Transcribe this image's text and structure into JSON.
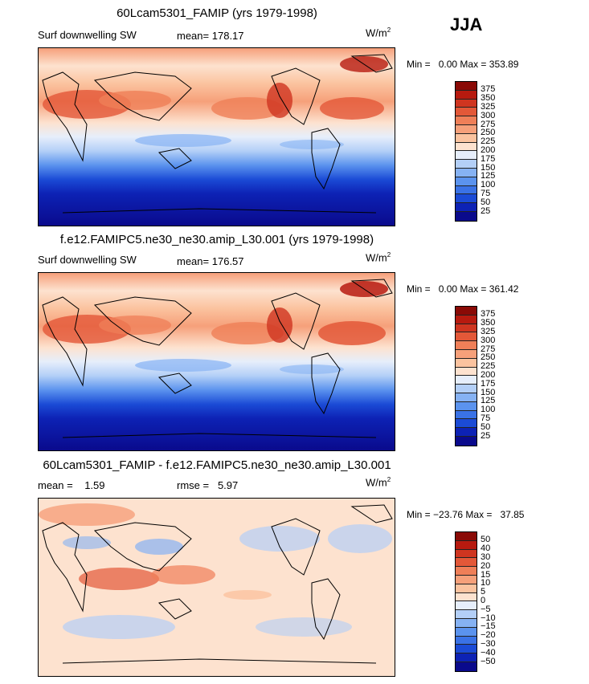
{
  "season": "JJA",
  "units": "W/m",
  "units_sup": "2",
  "colors": {
    "abs_scale": [
      "#0a0a8c",
      "#0d22b5",
      "#1b4bd6",
      "#3a72e6",
      "#5b93ee",
      "#86b2f3",
      "#b3cff7",
      "#e6eefb",
      "#fde2cf",
      "#fbc39f",
      "#f6a07a",
      "#ef7f58",
      "#e35838",
      "#cf3520",
      "#b71a0f",
      "#8a0a06"
    ],
    "diff_scale": [
      "#0a0a8c",
      "#0d22b5",
      "#1b4bd6",
      "#3a72e6",
      "#5b93ee",
      "#86b2f3",
      "#b3cff7",
      "#e6eefb",
      "#fde2cf",
      "#fbc39f",
      "#f6a07a",
      "#ef7f58",
      "#e35838",
      "#cf3520",
      "#b71a0f",
      "#8a0a06"
    ]
  },
  "panels": [
    {
      "title": "60Lcam5301_FAMIP (yrs 1979-1998)",
      "left_label": "Surf downwelling SW",
      "stat_label": "mean=",
      "stat_value": "178.17",
      "stat2_label": "",
      "stat2_value": "",
      "min_label": "Min =",
      "min_value": "0.00",
      "max_label": "Max =",
      "max_value": "353.89",
      "ticks": [
        "375",
        "350",
        "325",
        "300",
        "275",
        "250",
        "225",
        "200",
        "175",
        "150",
        "125",
        "100",
        "75",
        "50",
        "25"
      ]
    },
    {
      "title": "f.e12.FAMIPC5.ne30_ne30.amip_L30.001 (yrs 1979-1998)",
      "left_label": "Surf downwelling SW",
      "stat_label": "mean=",
      "stat_value": "176.57",
      "stat2_label": "",
      "stat2_value": "",
      "min_label": "Min =",
      "min_value": "0.00",
      "max_label": "Max =",
      "max_value": "361.42",
      "ticks": [
        "375",
        "350",
        "325",
        "300",
        "275",
        "250",
        "225",
        "200",
        "175",
        "150",
        "125",
        "100",
        "75",
        "50",
        "25"
      ]
    },
    {
      "title": "60Lcam5301_FAMIP - f.e12.FAMIPC5.ne30_ne30.amip_L30.001",
      "left_label": "",
      "stat_label": "mean =",
      "stat_value": "1.59",
      "stat2_label": "rmse =",
      "stat2_value": "5.97",
      "min_label": "Min =",
      "min_value": "−23.76",
      "max_label": "Max =",
      "max_value": "37.85",
      "ticks": [
        "50",
        "40",
        "30",
        "20",
        "15",
        "10",
        "5",
        "0",
        "−5",
        "−10",
        "−15",
        "−20",
        "−30",
        "−40",
        "−50"
      ]
    }
  ],
  "chart_data": [
    {
      "type": "heatmap",
      "title": "60Lcam5301_FAMIP (yrs 1979-1998)",
      "variable": "Surf downwelling SW",
      "season": "JJA",
      "units": "W/m2",
      "mean": 178.17,
      "min": 0.0,
      "max": 353.89,
      "levels": [
        25,
        50,
        75,
        100,
        125,
        150,
        175,
        200,
        225,
        250,
        275,
        300,
        325,
        350,
        375
      ]
    },
    {
      "type": "heatmap",
      "title": "f.e12.FAMIPC5.ne30_ne30.amip_L30.001 (yrs 1979-1998)",
      "variable": "Surf downwelling SW",
      "season": "JJA",
      "units": "W/m2",
      "mean": 176.57,
      "min": 0.0,
      "max": 361.42,
      "levels": [
        25,
        50,
        75,
        100,
        125,
        150,
        175,
        200,
        225,
        250,
        275,
        300,
        325,
        350,
        375
      ]
    },
    {
      "type": "heatmap",
      "title": "60Lcam5301_FAMIP - f.e12.FAMIPC5.ne30_ne30.amip_L30.001",
      "season": "JJA",
      "units": "W/m2",
      "mean": 1.59,
      "rmse": 5.97,
      "min": -23.76,
      "max": 37.85,
      "levels": [
        -50,
        -40,
        -30,
        -20,
        -15,
        -10,
        -5,
        0,
        5,
        10,
        15,
        20,
        30,
        40,
        50
      ]
    }
  ]
}
